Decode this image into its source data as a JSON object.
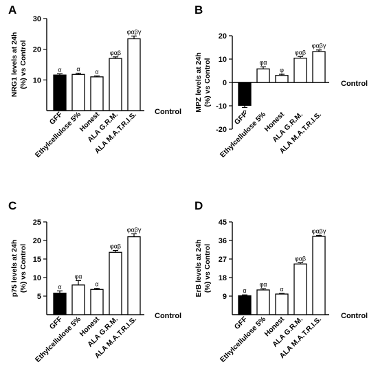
{
  "figure": {
    "panels": [
      "A",
      "B",
      "C",
      "D"
    ]
  },
  "colors": {
    "filled_bar": "#000000",
    "open_bar": "#ffffff",
    "stroke": "#000000"
  },
  "chart_data": [
    {
      "panel_label": "A",
      "type": "bar",
      "ylabel": "NRG1 levels at 24h\n(%) vs Control",
      "baseline_label": "Control",
      "categories": [
        "GFF",
        "Ethylcellulose 5%",
        "Honest",
        "ALA G.R.M.",
        "ALA M.A.T.R.I.S."
      ],
      "values": [
        11.6,
        11.8,
        11.0,
        17.0,
        23.4
      ],
      "errors": [
        0.4,
        0.4,
        0.3,
        0.5,
        0.9
      ],
      "annotations": [
        "α",
        "α",
        "α",
        "φαβ",
        "φαβγ"
      ],
      "filled": [
        true,
        false,
        false,
        false,
        false
      ],
      "yticks": [
        10,
        20,
        30
      ],
      "ylim": [
        0,
        30
      ]
    },
    {
      "panel_label": "B",
      "type": "bar",
      "ylabel": "MPZ levels at 24h\n(%) vs Control",
      "baseline_label": "Control",
      "categories": [
        "GFF",
        "Ethylcellulose 5%",
        "Honest",
        "ALA G.R.M.",
        "ALA M.A.T.R.I.S."
      ],
      "values": [
        -9.8,
        5.8,
        3.0,
        10.4,
        13.2
      ],
      "errors": [
        0.9,
        0.9,
        0.5,
        0.7,
        0.7
      ],
      "annotations": [
        "α",
        "φα",
        "φ",
        "φαβ",
        "φαβγ"
      ],
      "filled": [
        true,
        false,
        false,
        false,
        false
      ],
      "yticks": [
        -20,
        -10,
        0,
        10,
        20
      ],
      "ylim": [
        -20,
        20
      ]
    },
    {
      "panel_label": "C",
      "type": "bar",
      "ylabel": "p75 levels at 24h\n(%) vs Control",
      "baseline_label": "Control",
      "categories": [
        "GFF",
        "Ethylcellulose 5%",
        "Honest",
        "ALA G.R.M.",
        "ALA M.A.T.R.I.S."
      ],
      "values": [
        5.8,
        8.0,
        6.8,
        16.8,
        21.0
      ],
      "errors": [
        0.6,
        1.2,
        0.3,
        0.5,
        0.8
      ],
      "annotations": [
        "α",
        "φα",
        "α",
        "φαβ",
        "φαβγ"
      ],
      "filled": [
        true,
        false,
        false,
        false,
        false
      ],
      "yticks": [
        5,
        10,
        15,
        20,
        25
      ],
      "ylim": [
        0,
        25
      ]
    },
    {
      "panel_label": "D",
      "type": "bar",
      "ylabel": "ErB levels at 24h\n(%) vs Control",
      "baseline_label": "Control",
      "categories": [
        "GFF",
        "Ethylcellulose 5%",
        "Honest",
        "ALA G.R.M.",
        "ALA M.A.T.R.I.S."
      ],
      "values": [
        9.2,
        12.0,
        10.0,
        24.6,
        38.0
      ],
      "errors": [
        0.4,
        0.6,
        0.3,
        0.6,
        0.5
      ],
      "annotations": [
        "α",
        "φα",
        "α",
        "φαβ",
        "φαβγ"
      ],
      "filled": [
        true,
        false,
        false,
        false,
        false
      ],
      "yticks": [
        9,
        18,
        27,
        36,
        45
      ],
      "ylim": [
        0,
        45
      ]
    }
  ]
}
